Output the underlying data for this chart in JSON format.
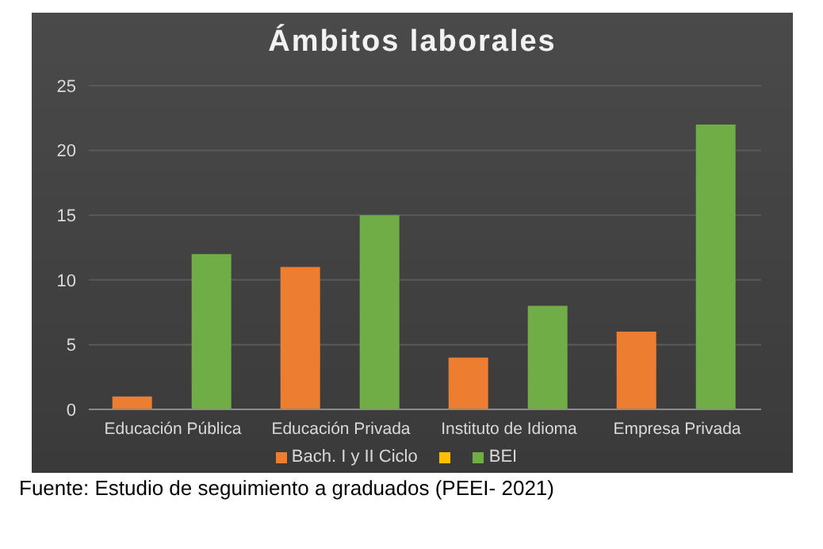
{
  "chart_data": {
    "type": "bar",
    "title": "Ámbitos laborales",
    "categories": [
      "Educación Pública",
      "Educación Privada",
      "Instituto de Idioma",
      "Empresa Privada"
    ],
    "series": [
      {
        "name": "Bach. I y II Ciclo",
        "color": "#ed7d31",
        "values": [
          1,
          11,
          4,
          6
        ]
      },
      {
        "color": "#ffc000",
        "values": [
          null,
          null,
          null,
          null
        ]
      },
      {
        "name": "BEI",
        "color": "#70ad47",
        "values": [
          12,
          15,
          8,
          22
        ]
      }
    ],
    "ylim": [
      0,
      25
    ],
    "yticks": [
      0,
      5,
      10,
      15,
      20,
      25
    ],
    "grid": "y",
    "legend": "bottom",
    "annotations": [
      "Fuente: Estudio de seguimiento a graduados (PEEI- 2021)"
    ]
  }
}
